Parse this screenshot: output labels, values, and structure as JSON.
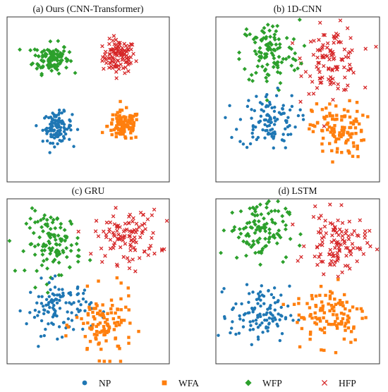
{
  "chart_data": [
    {
      "type": "scatter",
      "title": "(a) Ours (CNN-Transformer)",
      "xlim": [
        0,
        1
      ],
      "ylim": [
        0,
        1
      ],
      "clusters": [
        {
          "series": "HFP",
          "center": [
            0.69,
            0.76
          ],
          "spread": [
            0.05,
            0.05
          ],
          "n": 110
        },
        {
          "series": "WFP",
          "center": [
            0.27,
            0.75
          ],
          "spread": [
            0.055,
            0.045
          ],
          "n": 110
        },
        {
          "series": "NP",
          "center": [
            0.31,
            0.33
          ],
          "spread": [
            0.045,
            0.045
          ],
          "n": 110
        },
        {
          "series": "WFA",
          "center": [
            0.72,
            0.34
          ],
          "spread": [
            0.05,
            0.045
          ],
          "n": 110
        }
      ]
    },
    {
      "type": "scatter",
      "title": "(b) 1D-CNN",
      "xlim": [
        0,
        1
      ],
      "ylim": [
        0,
        1
      ],
      "clusters": [
        {
          "series": "HFP",
          "center": [
            0.71,
            0.74
          ],
          "spread": [
            0.085,
            0.1
          ],
          "n": 110
        },
        {
          "series": "WFP",
          "center": [
            0.33,
            0.78
          ],
          "spread": [
            0.09,
            0.1
          ],
          "n": 110
        },
        {
          "series": "NP",
          "center": [
            0.32,
            0.37
          ],
          "spread": [
            0.09,
            0.085
          ],
          "n": 110
        },
        {
          "series": "WFA",
          "center": [
            0.75,
            0.31
          ],
          "spread": [
            0.08,
            0.085
          ],
          "n": 110
        }
      ]
    },
    {
      "type": "scatter",
      "title": "(c) GRU",
      "xlim": [
        0,
        1
      ],
      "ylim": [
        0,
        1
      ],
      "clusters": [
        {
          "series": "HFP",
          "center": [
            0.74,
            0.77
          ],
          "spread": [
            0.1,
            0.08
          ],
          "n": 110
        },
        {
          "series": "WFP",
          "center": [
            0.29,
            0.73
          ],
          "spread": [
            0.085,
            0.095
          ],
          "n": 110
        },
        {
          "series": "NP",
          "center": [
            0.32,
            0.34
          ],
          "spread": [
            0.1,
            0.08
          ],
          "n": 110
        },
        {
          "series": "WFA",
          "center": [
            0.6,
            0.23
          ],
          "spread": [
            0.09,
            0.1
          ],
          "n": 110
        }
      ]
    },
    {
      "type": "scatter",
      "title": "(d) LSTM",
      "xlim": [
        0,
        1
      ],
      "ylim": [
        0,
        1
      ],
      "clusters": [
        {
          "series": "HFP",
          "center": [
            0.74,
            0.73
          ],
          "spread": [
            0.09,
            0.09
          ],
          "n": 110
        },
        {
          "series": "WFP",
          "center": [
            0.26,
            0.81
          ],
          "spread": [
            0.09,
            0.09
          ],
          "n": 110
        },
        {
          "series": "NP",
          "center": [
            0.27,
            0.3
          ],
          "spread": [
            0.09,
            0.085
          ],
          "n": 110
        },
        {
          "series": "WFA",
          "center": [
            0.7,
            0.31
          ],
          "spread": [
            0.11,
            0.095
          ],
          "n": 110
        }
      ]
    }
  ],
  "legend": {
    "position": "bottom",
    "items": [
      {
        "name": "NP",
        "marker": "circle",
        "color": "#1f77b4"
      },
      {
        "name": "WFA",
        "marker": "square",
        "color": "#ff7f0e"
      },
      {
        "name": "WFP",
        "marker": "diamond",
        "color": "#2ca02c"
      },
      {
        "name": "HFP",
        "marker": "cross",
        "color": "#d62728"
      }
    ]
  }
}
